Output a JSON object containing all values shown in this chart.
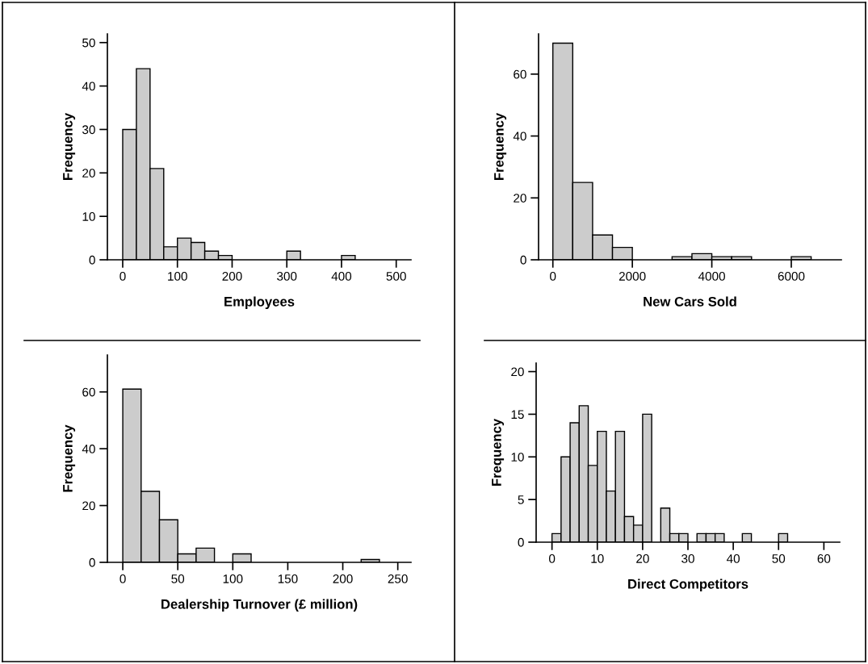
{
  "chart_data": [
    {
      "type": "histogram",
      "xlabel": "Employees",
      "ylabel": "Frequency",
      "bins": [
        0,
        25,
        50,
        75,
        100,
        125,
        150,
        175,
        200,
        225,
        250,
        275,
        300,
        325,
        350,
        375,
        400,
        425
      ],
      "values": [
        30,
        44,
        21,
        3,
        5,
        4,
        2,
        1,
        0,
        0,
        0,
        0,
        2,
        0,
        0,
        0,
        1
      ],
      "color": "#cccccc",
      "xlim": [
        -28,
        527
      ],
      "xticks": [
        0,
        100,
        200,
        300,
        400,
        500
      ],
      "ylim": [
        0,
        52
      ],
      "yticks": [
        0,
        10,
        20,
        30,
        40,
        50
      ],
      "grid": false
    },
    {
      "type": "histogram",
      "xlabel": "New Cars Sold",
      "ylabel": "Frequency",
      "bins": [
        0,
        500,
        1000,
        1500,
        2000,
        2500,
        3000,
        3500,
        4000,
        4500,
        5000,
        5500,
        6000,
        6500
      ],
      "values": [
        70,
        25,
        8,
        4,
        0,
        0,
        1,
        2,
        1,
        1,
        0,
        0,
        1
      ],
      "color": "#cccccc",
      "xlim": [
        -360,
        7260
      ],
      "xticks": [
        0,
        2000,
        4000,
        6000
      ],
      "ylim": [
        0,
        73
      ],
      "yticks": [
        0,
        20,
        40,
        60
      ],
      "grid": false
    },
    {
      "type": "histogram",
      "xlabel": "Dealership Turnover (£ million)",
      "ylabel": "Frequency",
      "bins": [
        0,
        16.67,
        33.33,
        50,
        66.67,
        83.33,
        100,
        116.67,
        133.33,
        150,
        166.67,
        183.33,
        200,
        216.67,
        233.33
      ],
      "values": [
        61,
        25,
        15,
        3,
        5,
        0,
        3,
        0,
        0,
        0,
        0,
        0,
        0,
        1
      ],
      "color": "#cccccc",
      "xlim": [
        -14,
        262
      ],
      "xticks": [
        0,
        50,
        100,
        150,
        200,
        250
      ],
      "ylim": [
        0,
        73
      ],
      "yticks": [
        0,
        20,
        40,
        60
      ],
      "grid": false
    },
    {
      "type": "histogram",
      "xlabel": "Direct Competitors",
      "ylabel": "Frequency",
      "bins": [
        0,
        2,
        4,
        6,
        8,
        10,
        12,
        14,
        16,
        18,
        20,
        22,
        24,
        26,
        28,
        30,
        32,
        34,
        36,
        38,
        40,
        42,
        44,
        46,
        48,
        50,
        52
      ],
      "values": [
        1,
        10,
        14,
        16,
        9,
        13,
        6,
        13,
        3,
        2,
        15,
        0,
        4,
        1,
        1,
        0,
        1,
        1,
        1,
        0,
        0,
        1,
        0,
        0,
        0,
        1
      ],
      "color": "#cccccc",
      "xlim": [
        -3.5,
        63.5
      ],
      "xticks": [
        0,
        10,
        20,
        30,
        40,
        50,
        60
      ],
      "ylim": [
        0,
        21
      ],
      "yticks": [
        0,
        5,
        10,
        15,
        20
      ],
      "grid": false
    }
  ]
}
